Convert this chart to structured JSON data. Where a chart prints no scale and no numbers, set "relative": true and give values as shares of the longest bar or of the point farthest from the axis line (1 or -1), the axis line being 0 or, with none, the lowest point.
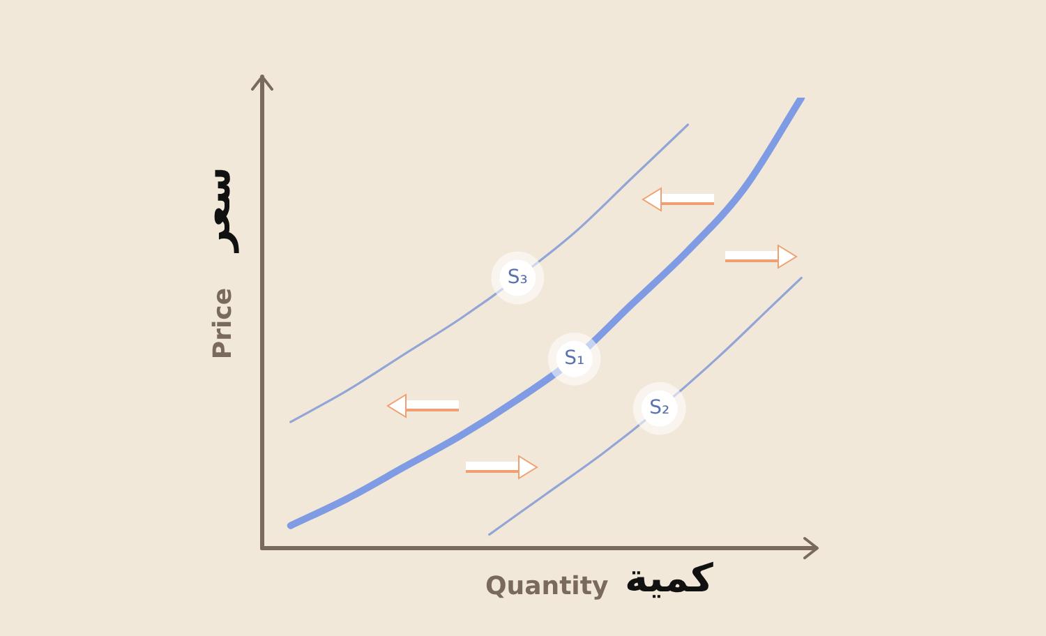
{
  "chart_data": {
    "type": "line",
    "relative": true,
    "xlabel": "Quantity",
    "ylabel": "Price",
    "annotations": [
      "كمية",
      "سعر"
    ],
    "categories": [
      null,
      null,
      null,
      null,
      null,
      null,
      null,
      null,
      null,
      null,
      null,
      null,
      null,
      null,
      null,
      null,
      null,
      null,
      null,
      null,
      null
    ],
    "series": [
      {
        "name": "S₁",
        "color": "#7f9be3",
        "values": [
          null,
          0.05,
          null,
          0.11,
          null,
          0.18,
          null,
          0.25,
          null,
          0.33,
          null,
          0.42,
          null,
          0.54,
          null,
          0.66,
          null,
          0.8,
          null,
          1,
          null
        ]
      },
      {
        "name": "S₂",
        "color": "#93a5d6",
        "values": [
          null,
          null,
          null,
          null,
          null,
          null,
          null,
          null,
          0.03,
          null,
          0.12,
          null,
          0.21,
          null,
          0.31,
          null,
          0.42,
          null,
          0.54,
          0.6,
          null
        ]
      },
      {
        "name": "S₃",
        "color": "#93a5d6",
        "values": [
          null,
          0.28,
          null,
          0.35,
          null,
          0.43,
          null,
          0.51,
          null,
          0.6,
          null,
          0.7,
          null,
          0.82,
          null,
          0.94,
          null,
          null,
          null,
          null,
          null
        ]
      }
    ],
    "legend": false,
    "marker": "none",
    "line_style": "solid"
  }
}
